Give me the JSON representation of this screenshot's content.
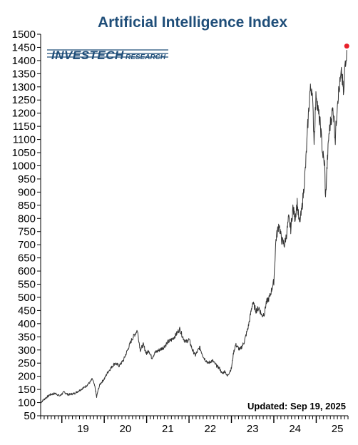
{
  "chart_data": {
    "type": "line",
    "title": "Artificial Intelligence Index",
    "logo_text": "INVESTECH",
    "logo_subtext": "RESEARCH",
    "annotation": "Updated:  Sep 19, 2025",
    "ylim": [
      50,
      1500
    ],
    "yticks": [
      50,
      100,
      150,
      200,
      250,
      300,
      350,
      400,
      450,
      500,
      550,
      600,
      650,
      700,
      750,
      800,
      850,
      900,
      950,
      1000,
      1050,
      1100,
      1150,
      1200,
      1250,
      1300,
      1350,
      1400,
      1450,
      1500
    ],
    "xlim": [
      2018.5,
      2025.75
    ],
    "xtick_labels": [
      "19",
      "20",
      "21",
      "22",
      "23",
      "24",
      "25"
    ],
    "xtick_positions": [
      2019.5,
      2020.5,
      2021.5,
      2022.5,
      2023.5,
      2024.5,
      2025.5
    ],
    "series": [
      {
        "color": "#333333",
        "x": [
          2018.5,
          2018.6,
          2018.72,
          2018.85,
          2018.95,
          2019.05,
          2019.15,
          2019.3,
          2019.45,
          2019.55,
          2019.65,
          2019.72,
          2019.78,
          2019.82,
          2019.85,
          2019.9,
          2020.0,
          2020.08,
          2020.15,
          2020.25,
          2020.35,
          2020.45,
          2020.55,
          2020.65,
          2020.72,
          2020.78,
          2020.85,
          2020.92,
          2021.0,
          2021.05,
          2021.12,
          2021.2,
          2021.3,
          2021.4,
          2021.5,
          2021.6,
          2021.7,
          2021.78,
          2021.85,
          2021.92,
          2022.0,
          2022.08,
          2022.15,
          2022.25,
          2022.35,
          2022.45,
          2022.55,
          2022.65,
          2022.72,
          2022.78,
          2022.85,
          2022.9,
          2023.0,
          2023.05,
          2023.1,
          2023.2,
          2023.3,
          2023.4,
          2023.5,
          2023.58,
          2023.65,
          2023.72,
          2023.78,
          2023.82,
          2023.86,
          2023.9,
          2024.0,
          2024.05,
          2024.12,
          2024.18,
          2024.25,
          2024.3,
          2024.35,
          2024.4,
          2024.45,
          2024.5,
          2024.55,
          2024.6,
          2024.65,
          2024.7,
          2024.75,
          2024.8,
          2024.85,
          2024.9,
          2024.95,
          2025.0,
          2025.05,
          2025.1,
          2025.15,
          2025.2,
          2025.22,
          2025.25,
          2025.3,
          2025.35,
          2025.4,
          2025.45,
          2025.5,
          2025.55,
          2025.6,
          2025.65,
          2025.68,
          2025.72
        ],
        "y": [
          100,
          115,
          130,
          135,
          125,
          140,
          130,
          135,
          150,
          160,
          175,
          190,
          160,
          120,
          145,
          170,
          190,
          215,
          230,
          250,
          240,
          260,
          300,
          340,
          360,
          375,
          300,
          320,
          285,
          300,
          270,
          290,
          300,
          310,
          330,
          340,
          360,
          380,
          350,
          330,
          340,
          300,
          280,
          310,
          270,
          250,
          260,
          240,
          230,
          210,
          220,
          200,
          230,
          290,
          320,
          300,
          330,
          390,
          480,
          450,
          460,
          430,
          440,
          480,
          490,
          500,
          560,
          720,
          780,
          720,
          700,
          740,
          800,
          760,
          840,
          800,
          860,
          780,
          820,
          900,
          1000,
          1150,
          1280,
          1300,
          1100,
          1280,
          1200,
          1150,
          1050,
          1000,
          870,
          980,
          1120,
          1180,
          1220,
          1100,
          1250,
          1300,
          1350,
          1270,
          1390,
          1440
        ]
      }
    ],
    "endpoint_marker": {
      "x": 2025.72,
      "y": 1455,
      "color": "#e8202a"
    },
    "grid": false
  }
}
